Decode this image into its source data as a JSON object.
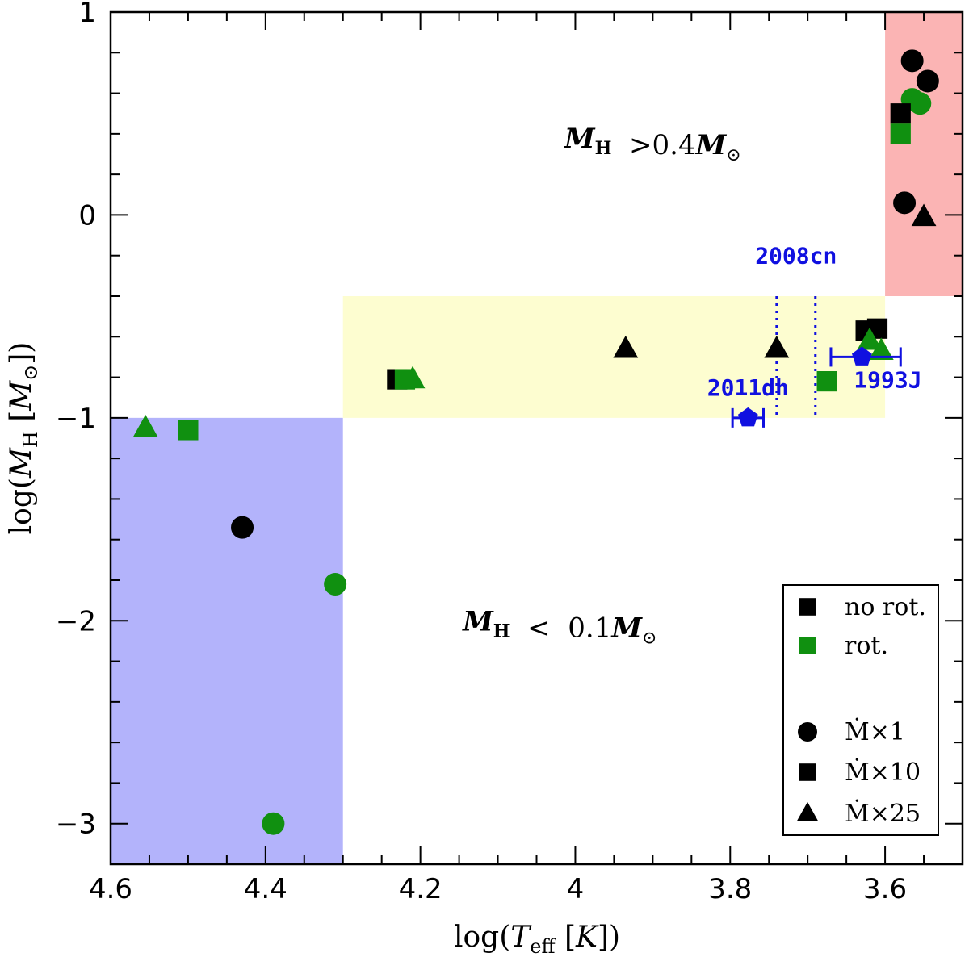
{
  "chart_data": {
    "type": "scatter",
    "xlabel": "log(T_eff [K])",
    "ylabel": "log(M_H [M_sun])",
    "xlim": [
      4.6,
      3.5
    ],
    "ylim": [
      -3.2,
      1.0
    ],
    "x_ticks": [
      4.6,
      4.4,
      4.2,
      4.0,
      3.8,
      3.6
    ],
    "x_tick_labels": [
      "4.6",
      "4.4",
      "4.2",
      "4",
      "3.8",
      "3.6"
    ],
    "y_ticks": [
      1,
      0,
      -1,
      -2,
      -3
    ],
    "y_tick_labels": [
      "1",
      "0",
      "−1",
      "−2",
      "−3"
    ],
    "regions": [
      {
        "name": "low-hydrogen",
        "x": [
          4.6,
          4.3
        ],
        "y": [
          -3.2,
          -1.0
        ],
        "color": "#b3b3fb"
      },
      {
        "name": "intermediate",
        "x": [
          4.3,
          3.6
        ],
        "y": [
          -1.0,
          -0.4
        ],
        "color": "#fdfdd0"
      },
      {
        "name": "high-hydrogen",
        "x": [
          3.6,
          3.5
        ],
        "y": [
          -0.4,
          1.0
        ],
        "color": "#fbb4b4"
      }
    ],
    "region_labels": [
      {
        "text": "M_H  >0.4M_sun",
        "x": 3.9,
        "y": 0.38
      },
      {
        "text": "M_H  <  0.1M_sun",
        "x": 4.02,
        "y": -2.0
      }
    ],
    "series": [
      {
        "name": "no rot. Ṁ×1",
        "marker": "circle",
        "color": "#000000",
        "points": [
          [
            4.43,
            -1.54
          ],
          [
            3.565,
            0.76
          ],
          [
            3.545,
            0.66
          ],
          [
            3.575,
            0.06
          ]
        ]
      },
      {
        "name": "rot. Ṁ×1",
        "marker": "circle",
        "color": "#109010",
        "points": [
          [
            4.31,
            -1.82
          ],
          [
            4.39,
            -3.0
          ],
          [
            3.565,
            0.57
          ],
          [
            3.555,
            0.55
          ]
        ]
      },
      {
        "name": "no rot. Ṁ×10",
        "marker": "square",
        "color": "#000000",
        "points": [
          [
            4.23,
            -0.81
          ],
          [
            3.625,
            -0.57
          ],
          [
            3.61,
            -0.56
          ],
          [
            3.58,
            0.5
          ]
        ]
      },
      {
        "name": "rot. Ṁ×10",
        "marker": "square",
        "color": "#109010",
        "points": [
          [
            4.5,
            -1.06
          ],
          [
            4.22,
            -0.81
          ],
          [
            3.675,
            -0.82
          ],
          [
            3.58,
            0.4
          ]
        ]
      },
      {
        "name": "no rot. Ṁ×25",
        "marker": "triangle",
        "color": "#000000",
        "points": [
          [
            3.935,
            -0.66
          ],
          [
            3.74,
            -0.66
          ],
          [
            3.55,
            -0.01
          ]
        ]
      },
      {
        "name": "rot. Ṁ×25",
        "marker": "triangle",
        "color": "#109010",
        "points": [
          [
            4.555,
            -1.05
          ],
          [
            4.21,
            -0.81
          ],
          [
            3.62,
            -0.62
          ],
          [
            3.605,
            -0.67
          ]
        ]
      }
    ],
    "observations": [
      {
        "label": "2011dh",
        "x": 3.777,
        "y": -1.0,
        "xerr": 0.02,
        "color": "#1010e0"
      },
      {
        "label": "1993J",
        "x": 3.63,
        "y": -0.7,
        "xerr_low": 0.04,
        "xerr_high": 0.05,
        "color": "#1010e0"
      }
    ],
    "annotations": [
      {
        "text": "2008cn",
        "x": 3.715,
        "y": -0.2,
        "type": "label"
      },
      {
        "text": "2008cn-range",
        "x_lines": [
          3.74,
          3.69
        ],
        "y": [
          -1.0,
          -0.4
        ],
        "type": "dotted-lines"
      }
    ],
    "legend": {
      "position": "bottom-right",
      "entries": [
        {
          "text": "no rot.",
          "marker": "square",
          "color": "#000000"
        },
        {
          "text": "rot.",
          "marker": "square",
          "color": "#109010"
        },
        {
          "text": "",
          "marker": "none",
          "color": "#000000"
        },
        {
          "text": "Ṁ×1",
          "marker": "circle",
          "color": "#000000"
        },
        {
          "text": "Ṁ×10",
          "marker": "square",
          "color": "#000000"
        },
        {
          "text": "Ṁ×25",
          "marker": "triangle",
          "color": "#000000"
        }
      ]
    }
  }
}
